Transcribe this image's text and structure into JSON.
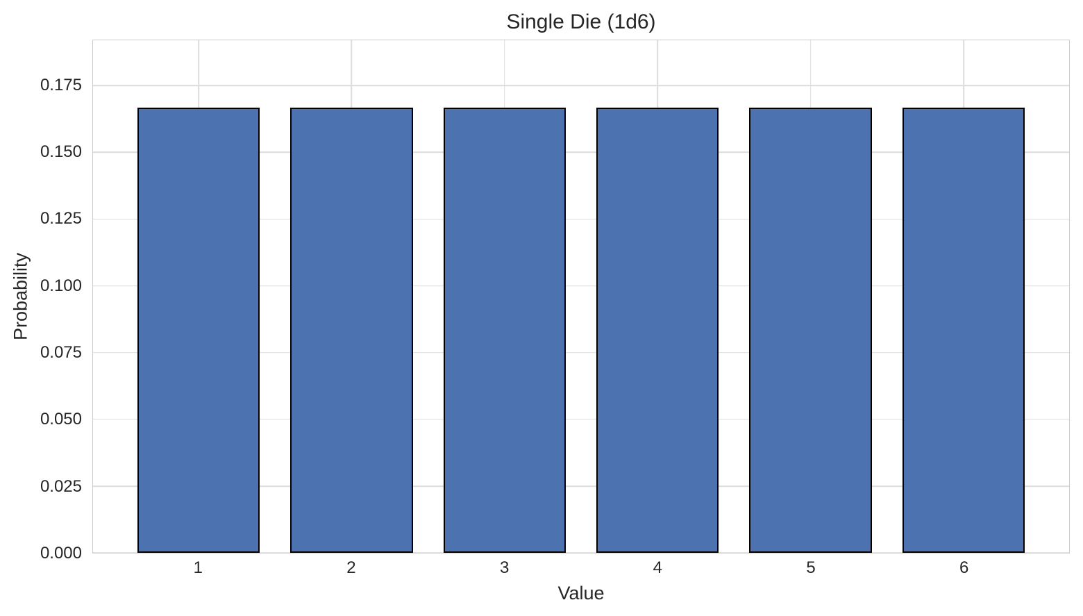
{
  "chart_data": {
    "type": "bar",
    "title": "Single Die (1d6)",
    "xlabel": "Value",
    "ylabel": "Probability",
    "categories": [
      "1",
      "2",
      "3",
      "4",
      "5",
      "6"
    ],
    "x": [
      1,
      2,
      3,
      4,
      5,
      6
    ],
    "values": [
      0.1667,
      0.1667,
      0.1667,
      0.1667,
      0.1667,
      0.1667
    ],
    "bar_width": 0.8,
    "xlim": [
      0.31,
      6.69
    ],
    "ylim": [
      0,
      0.192
    ],
    "yticks": [
      0.0,
      0.025,
      0.05,
      0.075,
      0.1,
      0.125,
      0.15,
      0.175
    ],
    "ytick_labels": [
      "0.000",
      "0.025",
      "0.050",
      "0.075",
      "0.100",
      "0.125",
      "0.150",
      "0.175"
    ],
    "grid": true,
    "legend": false,
    "colors": {
      "bar_fill": "#4C72B0",
      "bar_edge": "#000000",
      "grid": "#dcdcdc",
      "spine": "#cccccc",
      "text": "#262626",
      "background": "#ffffff"
    }
  }
}
